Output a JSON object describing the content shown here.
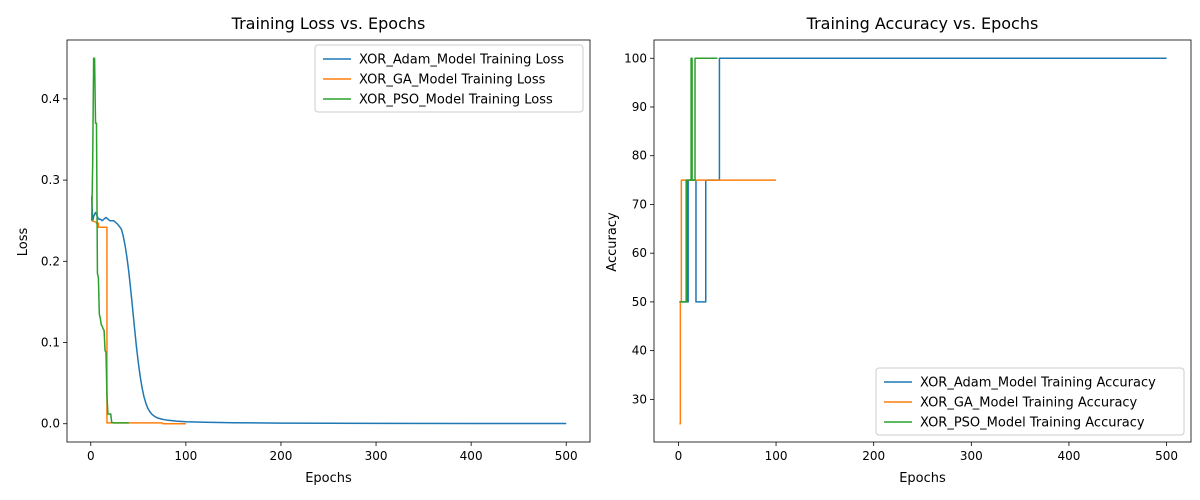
{
  "colors": {
    "adam": "#1f77b4",
    "ga": "#ff7f0e",
    "pso": "#2ca02c"
  },
  "chart_data": [
    {
      "type": "line",
      "title": "Training Loss vs. Epochs",
      "xlabel": "Epochs",
      "ylabel": "Loss",
      "xlim": [
        -25,
        525
      ],
      "ylim": [
        -0.0225,
        0.4725
      ],
      "xticks": [
        0,
        100,
        200,
        300,
        400,
        500
      ],
      "yticks": [
        0.0,
        0.1,
        0.2,
        0.3,
        0.4
      ],
      "legend": "upper right",
      "series": [
        {
          "name": "XOR_Adam_Model Training Loss",
          "color": "#1f77b4",
          "x": [
            1,
            2,
            3,
            4,
            5,
            6,
            8,
            10,
            12,
            14,
            16,
            18,
            20,
            22,
            24,
            26,
            28,
            30,
            32,
            34,
            36,
            38,
            40,
            42,
            44,
            46,
            48,
            50,
            52,
            54,
            56,
            58,
            60,
            62,
            64,
            66,
            68,
            70,
            75,
            80,
            90,
            100,
            120,
            150,
            200,
            300,
            400,
            500
          ],
          "y": [
            0.28,
            0.25,
            0.255,
            0.258,
            0.26,
            0.258,
            0.252,
            0.252,
            0.25,
            0.252,
            0.254,
            0.252,
            0.25,
            0.25,
            0.25,
            0.248,
            0.246,
            0.243,
            0.24,
            0.232,
            0.22,
            0.205,
            0.187,
            0.165,
            0.142,
            0.118,
            0.095,
            0.075,
            0.058,
            0.044,
            0.033,
            0.025,
            0.019,
            0.015,
            0.012,
            0.01,
            0.0085,
            0.0072,
            0.0055,
            0.0045,
            0.0032,
            0.0025,
            0.0018,
            0.0012,
            0.0008,
            0.0005,
            0.0003,
            0.0002
          ]
        },
        {
          "name": "XOR_GA_Model Training Loss",
          "color": "#ff7f0e",
          "x": [
            1,
            6,
            6,
            8,
            8,
            17,
            17,
            18,
            18,
            40,
            75,
            76,
            100
          ],
          "y": [
            0.25,
            0.248,
            0.247,
            0.247,
            0.242,
            0.242,
            0.001,
            0.001,
            0.001,
            0.001,
            0.001,
            0.0,
            0.0
          ]
        },
        {
          "name": "XOR_PSO_Model Training Loss",
          "color": "#2ca02c",
          "x": [
            1,
            2,
            3,
            4,
            5,
            6,
            7,
            8,
            9,
            10,
            11,
            12,
            13,
            14,
            15,
            16,
            17,
            18,
            19,
            20,
            21,
            22,
            23,
            24,
            25,
            30,
            35,
            40
          ],
          "y": [
            0.25,
            0.32,
            0.45,
            0.45,
            0.37,
            0.37,
            0.185,
            0.18,
            0.135,
            0.13,
            0.122,
            0.12,
            0.117,
            0.115,
            0.09,
            0.088,
            0.035,
            0.012,
            0.012,
            0.012,
            0.012,
            0.0015,
            0.0015,
            0.001,
            0.001,
            0.001,
            0.001,
            0.001
          ]
        }
      ]
    },
    {
      "type": "line",
      "title": "Training Accuracy vs. Epochs",
      "xlabel": "Epochs",
      "ylabel": "Accuracy",
      "xlim": [
        -25,
        525
      ],
      "ylim": [
        21.25,
        103.75
      ],
      "xticks": [
        0,
        100,
        200,
        300,
        400,
        500
      ],
      "yticks": [
        30,
        40,
        50,
        60,
        70,
        80,
        90,
        100
      ],
      "legend": "lower right",
      "series": [
        {
          "name": "XOR_Adam_Model Training Accuracy",
          "color": "#1f77b4",
          "x": [
            1,
            8,
            8,
            9,
            9,
            10,
            10,
            18,
            18,
            19,
            19,
            28,
            28,
            42,
            42,
            500
          ],
          "y": [
            50,
            50,
            75,
            75,
            50,
            50,
            75,
            75,
            50,
            50,
            50,
            50,
            75,
            75,
            100,
            100
          ]
        },
        {
          "name": "XOR_GA_Model Training Accuracy",
          "color": "#ff7f0e",
          "x": [
            1,
            2,
            2,
            3,
            3,
            100
          ],
          "y": [
            25,
            25,
            50,
            50,
            75,
            75
          ]
        },
        {
          "name": "XOR_PSO_Model Training Accuracy",
          "color": "#2ca02c",
          "x": [
            1,
            8,
            8,
            13,
            13,
            14,
            14,
            15,
            15,
            17,
            17,
            40
          ],
          "y": [
            50,
            50,
            75,
            75,
            100,
            100,
            75,
            75,
            75,
            75,
            100,
            100
          ]
        }
      ]
    }
  ]
}
